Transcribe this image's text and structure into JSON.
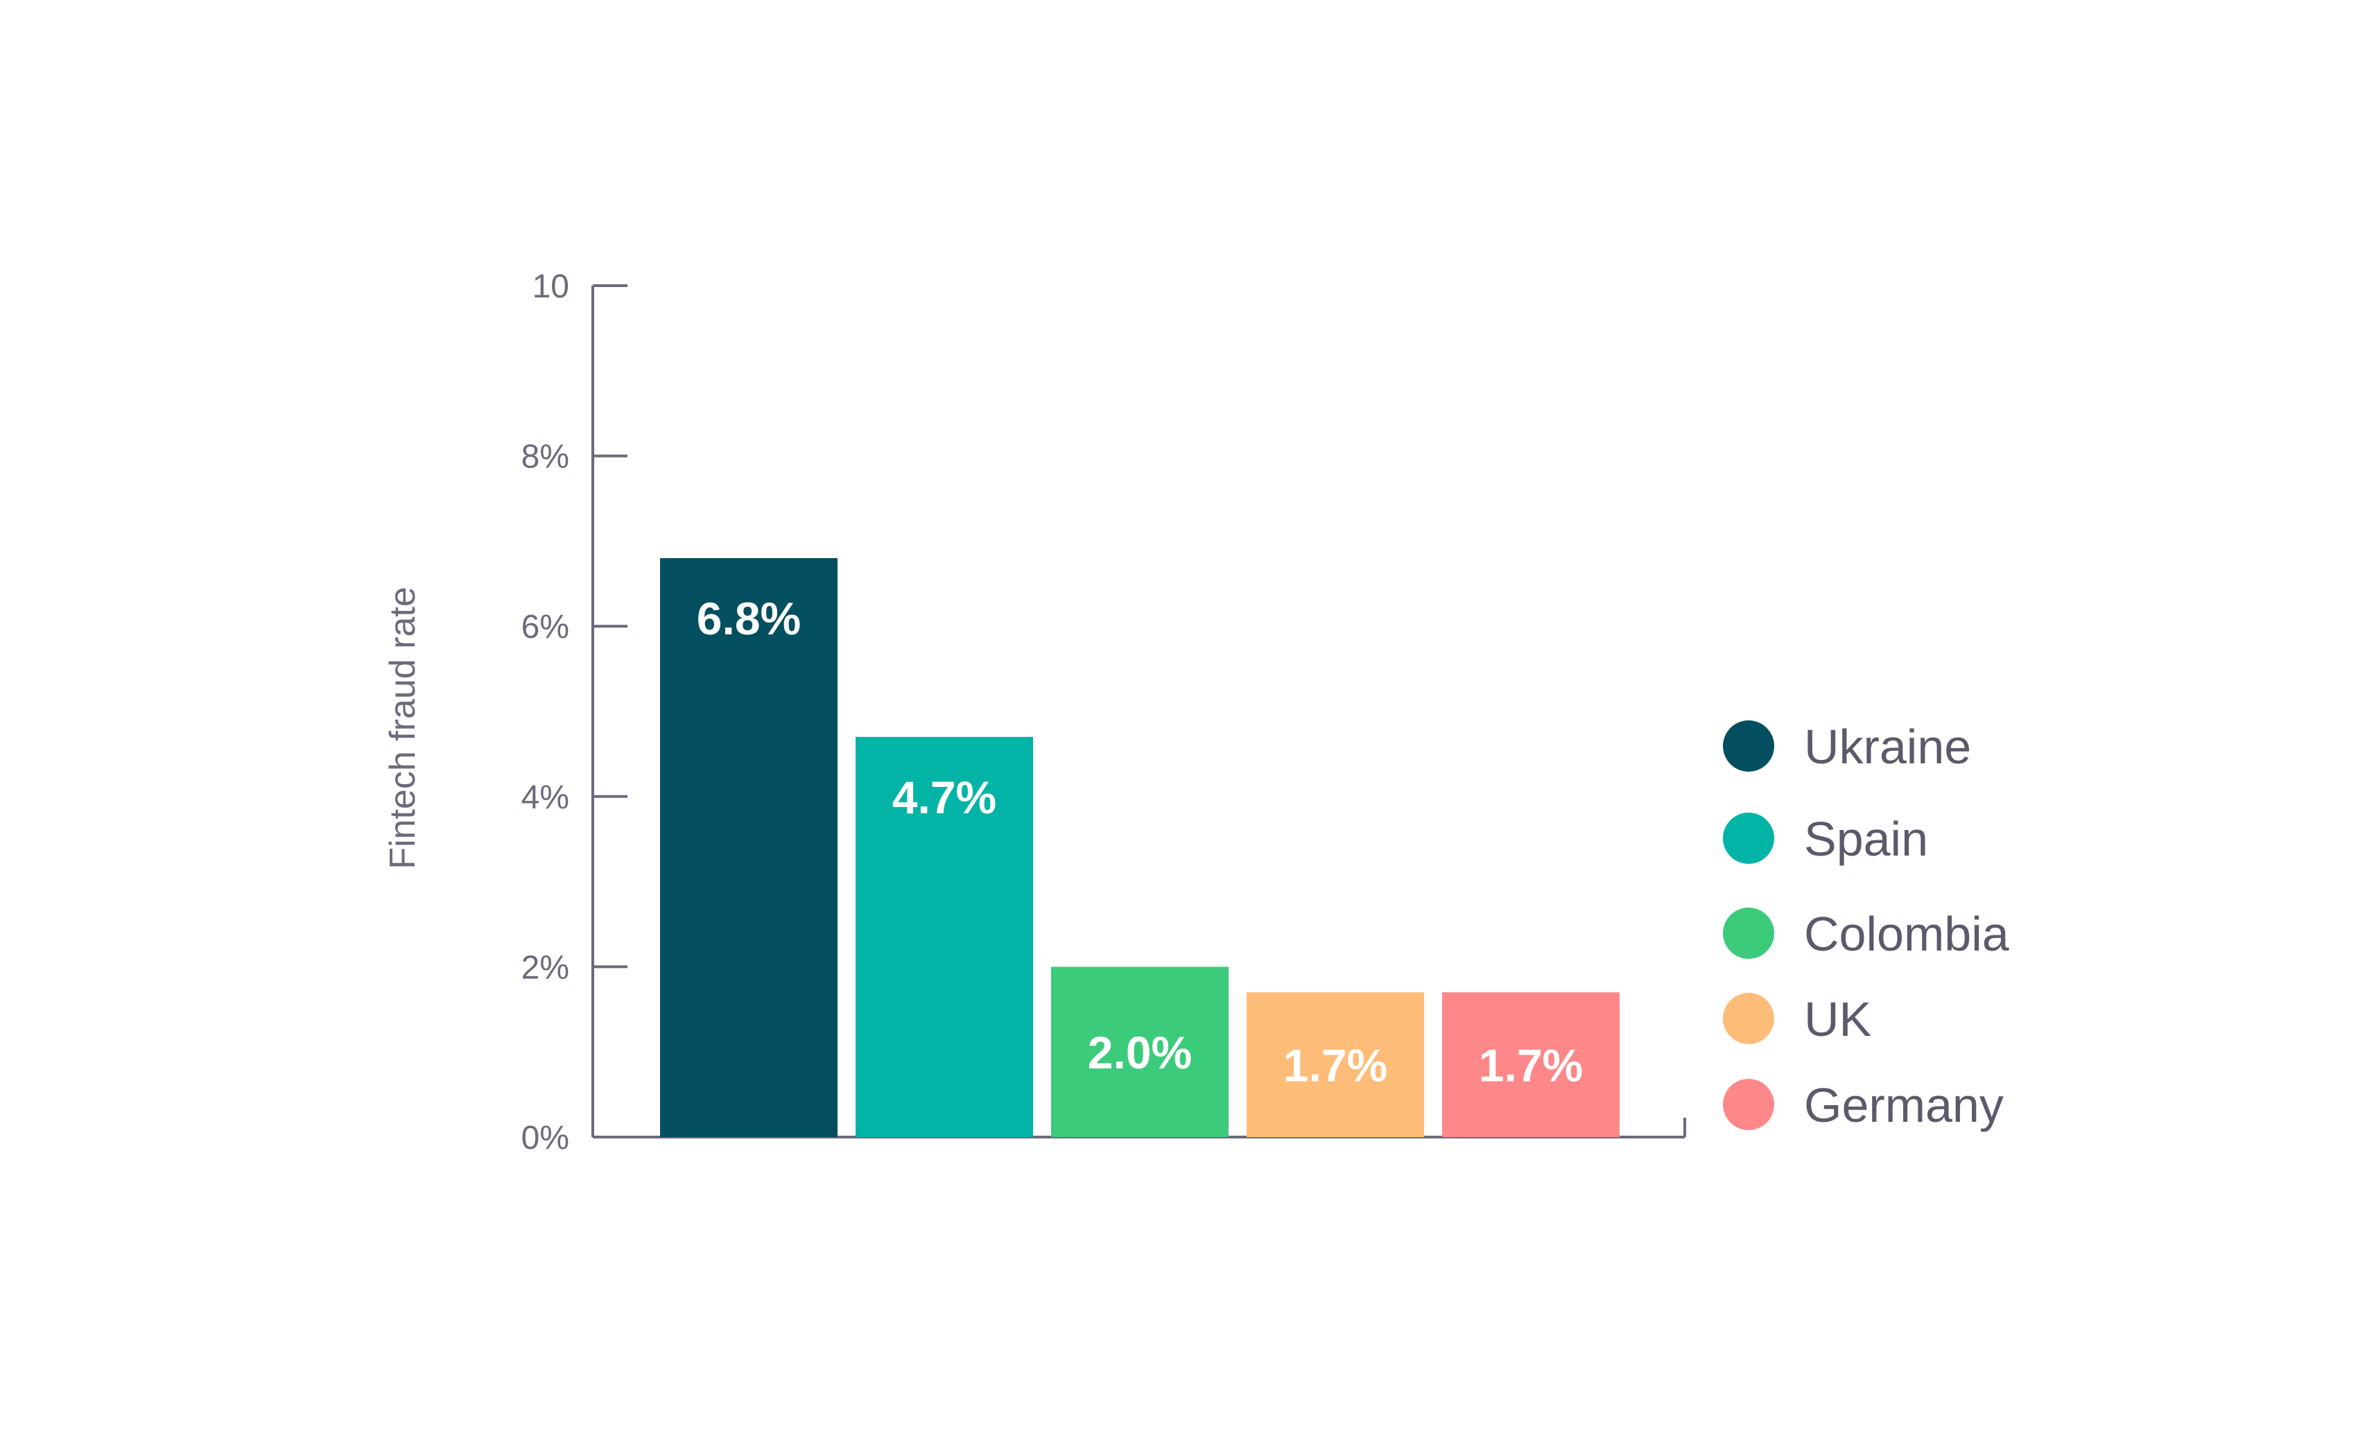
{
  "chart_data": {
    "type": "bar",
    "title": "",
    "xlabel": "",
    "ylabel": "Fintech fraud rate",
    "categories": [
      "Ukraine",
      "Spain",
      "Colombia",
      "UK",
      "Germany"
    ],
    "values": [
      6.8,
      4.7,
      2.0,
      1.7,
      1.7
    ],
    "value_labels": [
      "6.8%",
      "4.7%",
      "2.0%",
      "1.7%",
      "1.7%"
    ],
    "colors": [
      "#034f5f",
      "#01b4a6",
      "#3ccb7b",
      "#fdbd78",
      "#fe878a"
    ],
    "ylim": [
      0,
      10
    ],
    "yticks": [
      0,
      2,
      4,
      6,
      8,
      10
    ],
    "ytick_labels": [
      "0%",
      "2%",
      "4%",
      "6%",
      "8%",
      "10"
    ],
    "grid": false,
    "legend": {
      "position": "right",
      "entries": [
        "Ukraine",
        "Spain",
        "Colombia",
        "UK",
        "Germany"
      ]
    }
  }
}
